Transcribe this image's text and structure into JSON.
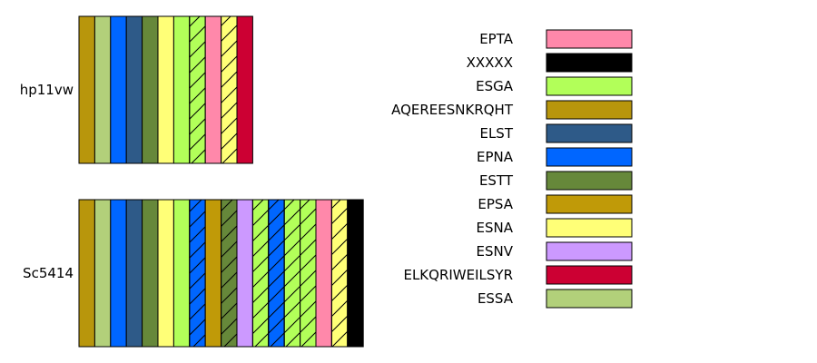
{
  "tracks": [
    {
      "label": "hp11vw",
      "segments": [
        {
          "motif": "AQEREESNKRQHT",
          "hatched": false
        },
        {
          "motif": "ESSA",
          "hatched": false
        },
        {
          "motif": "EPNA",
          "hatched": false
        },
        {
          "motif": "ELST",
          "hatched": false
        },
        {
          "motif": "ESTT",
          "hatched": false
        },
        {
          "motif": "ESNA",
          "hatched": false
        },
        {
          "motif": "ESGA",
          "hatched": false
        },
        {
          "motif": "ESGA",
          "hatched": true
        },
        {
          "motif": "EPTA",
          "hatched": false
        },
        {
          "motif": "ESNA",
          "hatched": true
        },
        {
          "motif": "ELKQRIWEILSYR",
          "hatched": false
        }
      ]
    },
    {
      "label": "Sc5414",
      "segments": [
        {
          "motif": "AQEREESNKRQHT",
          "hatched": false
        },
        {
          "motif": "ESSA",
          "hatched": false
        },
        {
          "motif": "EPNA",
          "hatched": false
        },
        {
          "motif": "ELST",
          "hatched": false
        },
        {
          "motif": "ESTT",
          "hatched": false
        },
        {
          "motif": "ESNA",
          "hatched": false
        },
        {
          "motif": "ESGA",
          "hatched": false
        },
        {
          "motif": "EPNA",
          "hatched": true
        },
        {
          "motif": "EPSA",
          "hatched": false
        },
        {
          "motif": "ESTT",
          "hatched": true
        },
        {
          "motif": "ESNV",
          "hatched": false
        },
        {
          "motif": "ESGA",
          "hatched": true
        },
        {
          "motif": "EPNA",
          "hatched": true
        },
        {
          "motif": "ESGA",
          "hatched": true
        },
        {
          "motif": "ESGA",
          "hatched": true
        },
        {
          "motif": "EPTA",
          "hatched": false
        },
        {
          "motif": "ESNA",
          "hatched": true
        },
        {
          "motif": "XXXXX",
          "hatched": false
        }
      ]
    }
  ],
  "legend": [
    {
      "label": "EPTA",
      "color": "#ff88aa"
    },
    {
      "label": "XXXXX",
      "color": "#000000"
    },
    {
      "label": "ESGA",
      "color": "#b2ff59"
    },
    {
      "label": "AQEREESNKRQHT",
      "color": "#b8960c"
    },
    {
      "label": "ELST",
      "color": "#2e5a88"
    },
    {
      "label": "EPNA",
      "color": "#0066ff"
    },
    {
      "label": "ESTT",
      "color": "#66883a"
    },
    {
      "label": "EPSA",
      "color": "#c09a08"
    },
    {
      "label": "ESNA",
      "color": "#ffff77"
    },
    {
      "label": "ESNV",
      "color": "#cc99ff"
    },
    {
      "label": "ELKQRIWEILSYR",
      "color": "#cc0033"
    },
    {
      "label": "ESSA",
      "color": "#b2d07a"
    }
  ]
}
